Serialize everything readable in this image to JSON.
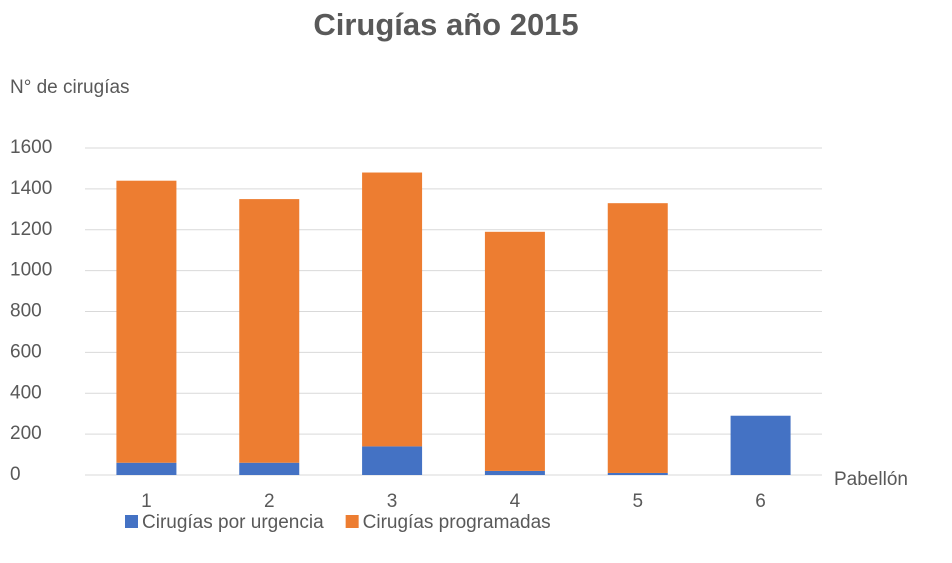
{
  "chart_data": {
    "type": "bar",
    "stacked": true,
    "title": "Cirugías año 2015",
    "y_label": "N° de cirugías",
    "x_label": "Pabellón",
    "categories": [
      "1",
      "2",
      "3",
      "4",
      "5",
      "6"
    ],
    "series": [
      {
        "name": "Cirugías por urgencia",
        "color": "#4472c4",
        "values": [
          60,
          60,
          140,
          20,
          10,
          290
        ]
      },
      {
        "name": "Cirugías programadas",
        "color": "#ed7d31",
        "values": [
          1380,
          1290,
          1340,
          1170,
          1320,
          0
        ]
      }
    ],
    "ylim": [
      0,
      1600
    ],
    "yticks": [
      0,
      200,
      400,
      600,
      800,
      1000,
      1200,
      1400,
      1600
    ],
    "grid": true
  }
}
